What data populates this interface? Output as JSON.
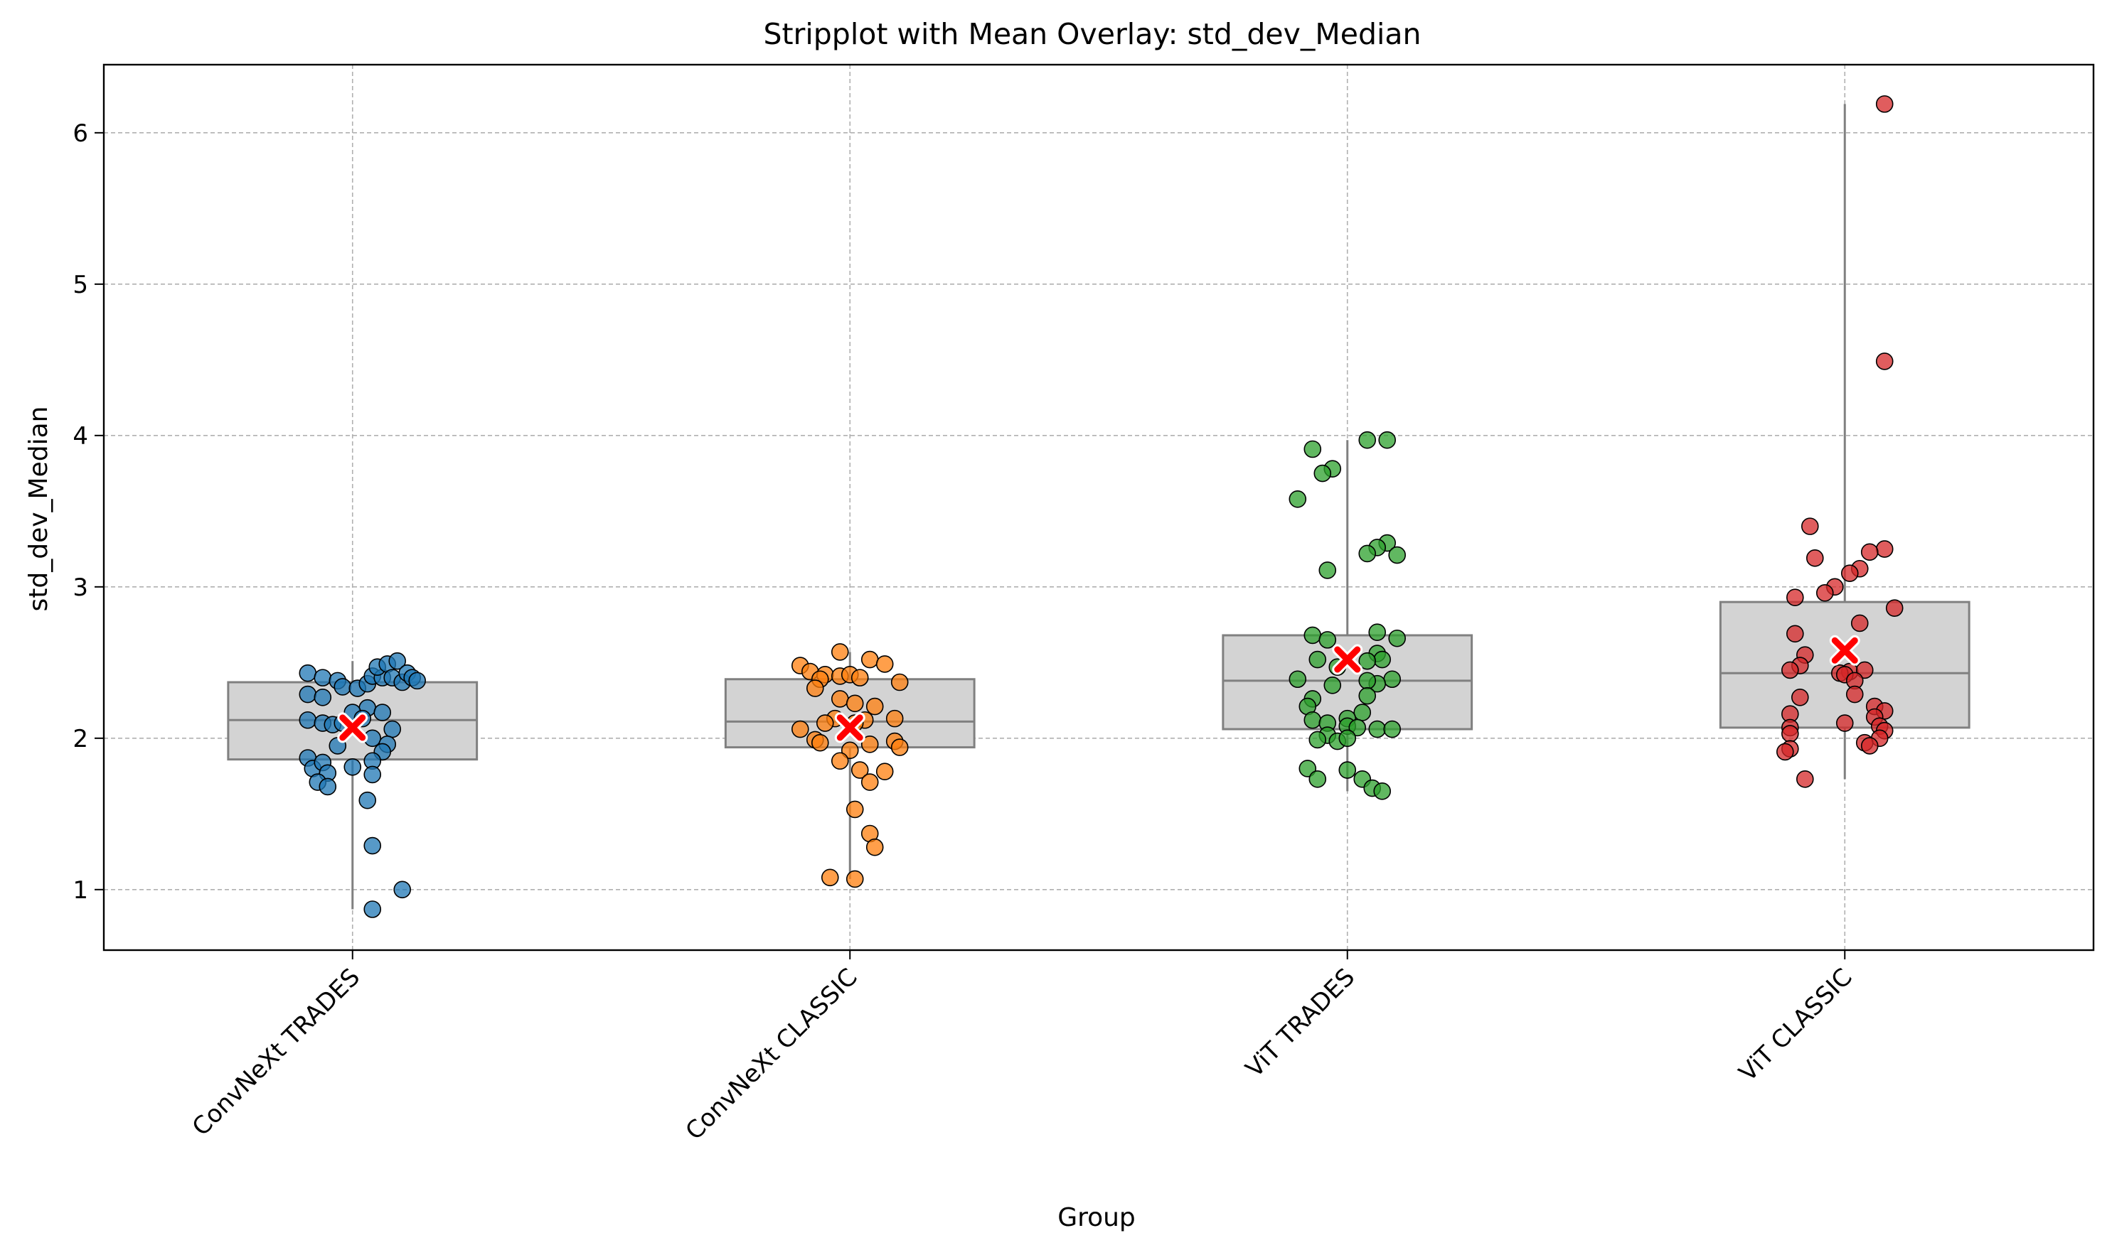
{
  "chart_data": {
    "type": "stripplot",
    "title": "Stripplot with Mean Overlay: std_dev_Median",
    "xlabel": "Group",
    "ylabel": "std_dev_Median",
    "ylim": [
      0.6,
      6.45
    ],
    "yticks": [
      1,
      2,
      3,
      4,
      5,
      6
    ],
    "grid": true,
    "categories": [
      "ConvNeXt TRADES",
      "ConvNeXt CLASSIC",
      "ViT TRADES",
      "ViT CLASSIC"
    ],
    "colors": [
      "#1f77b4",
      "#ff7f0e",
      "#2ca02c",
      "#d62728"
    ],
    "mean_marker_color": "#ff0000",
    "box_fill": "#d3d3d3",
    "box_edge": "#808080",
    "boxes": [
      {
        "q1": 1.86,
        "median": 2.12,
        "q3": 2.37,
        "whisker_low": 0.87,
        "whisker_high": 2.51,
        "mean": 2.07
      },
      {
        "q1": 1.94,
        "median": 2.11,
        "q3": 2.39,
        "whisker_low": 1.07,
        "whisker_high": 2.57,
        "mean": 2.07
      },
      {
        "q1": 2.06,
        "median": 2.38,
        "q3": 2.68,
        "whisker_low": 1.65,
        "whisker_high": 3.97,
        "mean": 2.52
      },
      {
        "q1": 2.07,
        "median": 2.43,
        "q3": 2.9,
        "whisker_low": 1.73,
        "whisker_high": 6.19,
        "mean": 2.58
      }
    ],
    "series": [
      {
        "values": [
          2.43,
          2.4,
          2.38,
          2.29,
          2.27,
          2.12,
          2.1,
          2.09,
          2.1,
          2.34,
          2.33,
          2.36,
          2.41,
          2.4,
          2.47,
          2.49,
          2.51,
          2.4,
          2.37,
          2.43,
          2.4,
          2.38,
          2.2,
          2.17,
          2.13,
          2.17,
          2.06,
          2.0,
          1.96,
          1.91,
          1.87,
          1.95,
          1.85,
          1.8,
          1.84,
          1.76,
          1.77,
          1.81,
          1.71,
          1.68,
          1.59,
          1.29,
          0.87,
          1.0
        ],
        "jitter": [
          -0.09,
          -0.06,
          -0.03,
          -0.09,
          -0.06,
          -0.09,
          -0.06,
          -0.04,
          -0.02,
          -0.02,
          0.01,
          0.03,
          0.04,
          0.06,
          0.05,
          0.07,
          0.09,
          0.08,
          0.1,
          0.11,
          0.12,
          0.13,
          0.03,
          0.0,
          0.02,
          0.06,
          0.08,
          0.04,
          0.07,
          0.06,
          -0.09,
          -0.03,
          0.04,
          -0.08,
          -0.06,
          0.04,
          -0.05,
          0.0,
          -0.07,
          -0.05,
          0.03,
          0.04,
          0.04,
          0.1
        ]
      },
      {
        "values": [
          2.57,
          2.52,
          2.49,
          2.48,
          2.44,
          2.42,
          2.41,
          2.42,
          2.4,
          2.39,
          2.37,
          2.33,
          2.26,
          2.23,
          2.21,
          2.13,
          2.12,
          2.13,
          2.1,
          2.06,
          2.1,
          1.99,
          1.97,
          1.98,
          1.94,
          1.92,
          1.96,
          1.85,
          1.79,
          1.78,
          1.71,
          1.53,
          1.37,
          1.28,
          1.08,
          1.07
        ],
        "jitter": [
          -0.02,
          0.04,
          0.07,
          -0.1,
          -0.08,
          -0.05,
          -0.02,
          0.0,
          0.02,
          -0.06,
          0.1,
          -0.07,
          -0.02,
          0.01,
          0.05,
          -0.03,
          0.03,
          0.09,
          -0.05,
          -0.1,
          0.01,
          -0.07,
          -0.06,
          0.09,
          0.1,
          0.0,
          0.04,
          -0.02,
          0.02,
          0.07,
          0.04,
          0.01,
          0.04,
          0.05,
          -0.04,
          0.01
        ]
      },
      {
        "values": [
          3.97,
          3.97,
          3.91,
          3.78,
          3.75,
          3.58,
          3.29,
          3.26,
          3.22,
          3.21,
          3.11,
          2.7,
          2.68,
          2.66,
          2.65,
          2.56,
          2.52,
          2.52,
          2.51,
          2.47,
          2.39,
          2.39,
          2.36,
          2.35,
          2.38,
          2.28,
          2.26,
          2.21,
          2.17,
          2.12,
          2.1,
          2.13,
          2.08,
          2.07,
          2.06,
          2.06,
          2.02,
          1.99,
          1.98,
          2.0,
          1.8,
          1.79,
          1.73,
          1.73,
          1.67,
          1.65
        ],
        "jitter": [
          0.08,
          0.04,
          -0.07,
          -0.03,
          -0.05,
          -0.1,
          0.08,
          0.06,
          0.04,
          0.1,
          -0.04,
          0.06,
          -0.07,
          0.1,
          -0.04,
          0.06,
          0.07,
          -0.06,
          0.04,
          -0.02,
          0.09,
          -0.1,
          0.06,
          -0.03,
          0.04,
          0.04,
          -0.07,
          -0.08,
          0.03,
          -0.07,
          -0.04,
          0.0,
          0.0,
          0.02,
          0.06,
          0.09,
          -0.04,
          -0.06,
          -0.02,
          0.0,
          -0.08,
          0.0,
          -0.06,
          0.03,
          0.05,
          0.07
        ]
      },
      {
        "values": [
          6.19,
          4.49,
          3.4,
          3.25,
          3.23,
          3.19,
          3.12,
          3.09,
          3.0,
          2.96,
          2.93,
          2.86,
          2.76,
          2.69,
          2.55,
          2.48,
          2.45,
          2.44,
          2.45,
          2.43,
          2.42,
          2.38,
          2.29,
          2.27,
          2.21,
          2.18,
          2.14,
          2.16,
          2.1,
          2.08,
          2.07,
          2.05,
          2.03,
          2.0,
          1.97,
          1.95,
          1.93,
          1.91,
          1.73
        ],
        "jitter": [
          0.08,
          0.08,
          -0.07,
          0.08,
          0.05,
          -0.06,
          0.03,
          0.01,
          -0.02,
          -0.04,
          -0.1,
          0.1,
          0.03,
          -0.1,
          -0.08,
          -0.09,
          -0.11,
          0.01,
          0.04,
          -0.01,
          0.0,
          0.02,
          0.02,
          -0.09,
          0.06,
          0.08,
          0.06,
          -0.11,
          0.0,
          0.07,
          -0.11,
          0.08,
          -0.11,
          0.07,
          0.04,
          0.05,
          -0.11,
          -0.12,
          -0.08
        ]
      }
    ]
  }
}
